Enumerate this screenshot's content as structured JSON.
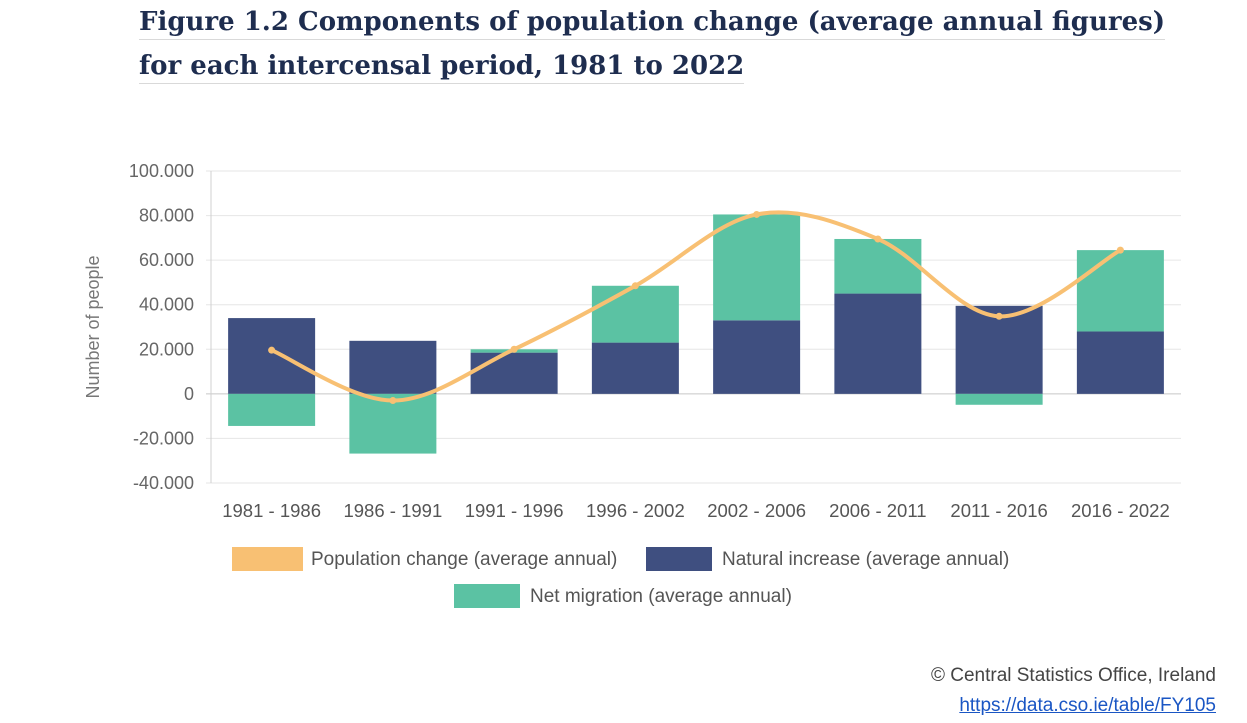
{
  "figure": {
    "title": "Figure 1.2 Components of population change (average annual figures) for each intercensal period, 1981 to 2022"
  },
  "chart_data": {
    "type": "bar",
    "stacked": true,
    "categories": [
      "1981 - 1986",
      "1986 - 1991",
      "1991 - 1996",
      "1996 - 2002",
      "2002 - 2006",
      "2006 - 2011",
      "2011 - 2016",
      "2016 - 2022"
    ],
    "series": [
      {
        "name": "Natural increase (average annual)",
        "type": "bar",
        "color": "#3f4f80",
        "values": [
          34000,
          23800,
          18500,
          23000,
          33000,
          45000,
          39500,
          28000
        ]
      },
      {
        "name": "Net migration (average annual)",
        "type": "bar",
        "color": "#5bc2a3",
        "values": [
          -14400,
          -26800,
          1500,
          25500,
          47500,
          24500,
          -4900,
          36500
        ]
      },
      {
        "name": "Population change (average annual)",
        "type": "line",
        "color": "#f8c073",
        "values": [
          19600,
          -3000,
          20000,
          48500,
          80500,
          69500,
          34800,
          64500
        ]
      }
    ],
    "ylabel": "Number of people",
    "ylim": [
      -40000,
      100000
    ],
    "yticks": [
      100000,
      80000,
      60000,
      40000,
      20000,
      0,
      -20000,
      -40000
    ],
    "ytick_labels": [
      "100.000",
      "80.000",
      "60.000",
      "40.000",
      "20.000",
      "0",
      "-20.000",
      "-40.000"
    ],
    "grid": true,
    "legend_position": "bottom"
  },
  "source": {
    "credit": "© Central Statistics Office, Ireland",
    "link": "https://data.cso.ie/table/FY105"
  }
}
